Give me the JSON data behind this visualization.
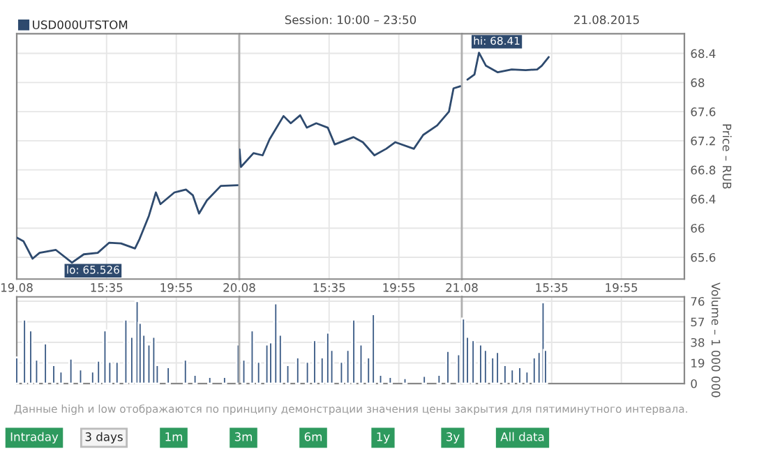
{
  "chart_data": [
    {
      "type": "line",
      "legend": "top left",
      "grid": true,
      "tick_labels": "x",
      "annotations": [
        {
          "text": "lo: 65.526",
          "x": "2015-08-19T13:26",
          "y": 65.526
        }
      ],
      "xlim": [
        "2015-08-19T10:00",
        "2015-08-19T23:50"
      ],
      "xticks": [
        {
          "value": "2015-08-19T10:00",
          "label": "19.08"
        },
        {
          "value": "2015-08-19T15:35",
          "label": "15:35"
        },
        {
          "value": "2015-08-19T19:55",
          "label": "19:55"
        }
      ],
      "ylim": [
        65.3,
        68.67
      ],
      "yticks": [
        65.6,
        66,
        66.4,
        66.8,
        67.2,
        67.6,
        68,
        68.4
      ],
      "series": [
        {
          "name": "USD000UTSTOM",
          "color": "#2e4a6e",
          "x": [
            "2015-08-19T10:00",
            "2015-08-19T10:25",
            "2015-08-19T10:59",
            "2015-08-19T11:25",
            "2015-08-19T12:26",
            "2015-08-19T13:26",
            "2015-08-19T14:10",
            "2015-08-19T15:02",
            "2015-08-19T15:45",
            "2015-08-19T16:29",
            "2015-08-19T17:21",
            "2015-08-19T17:38",
            "2015-08-19T18:13",
            "2015-08-19T18:39",
            "2015-08-19T18:56",
            "2015-08-19T19:48",
            "2015-08-19T20:31",
            "2015-08-19T20:57",
            "2015-08-19T21:20",
            "2015-08-19T21:49",
            "2015-08-19T22:41",
            "2015-08-19T23:46"
          ],
          "values": [
            65.87,
            65.82,
            65.58,
            65.66,
            65.7,
            65.526,
            65.64,
            65.66,
            65.8,
            65.79,
            65.72,
            65.85,
            66.17,
            66.49,
            66.33,
            66.49,
            66.53,
            66.45,
            66.2,
            66.38,
            66.58,
            66.59
          ]
        }
      ]
    },
    {
      "type": "line",
      "grid": true,
      "tick_labels": "x",
      "annotations": [
        "Session: 10:00 – 23:50"
      ],
      "xlim": [
        "2015-08-20T10:00",
        "2015-08-20T23:50"
      ],
      "xticks": [
        {
          "value": "2015-08-20T10:00",
          "label": "20.08"
        },
        {
          "value": "2015-08-20T15:35",
          "label": "15:35"
        },
        {
          "value": "2015-08-20T19:55",
          "label": "19:55"
        }
      ],
      "ylim": [
        65.3,
        68.67
      ],
      "yticks": [
        65.6,
        66,
        66.4,
        66.8,
        67.2,
        67.6,
        68,
        68.4
      ],
      "series": [
        {
          "color": "#2e4a6e",
          "x": [
            "2015-08-20T10:01",
            "2015-08-20T10:06",
            "2015-08-20T10:53",
            "2015-08-20T11:27",
            "2015-08-20T11:53",
            "2015-08-20T12:45",
            "2015-08-20T13:12",
            "2015-08-20T13:47",
            "2015-08-20T14:12",
            "2015-08-20T14:47",
            "2015-08-20T15:30",
            "2015-08-20T15:56",
            "2015-08-20T17:06",
            "2015-08-20T17:41",
            "2015-08-20T18:24",
            "2015-08-20T19:08",
            "2015-08-20T19:42",
            "2015-08-20T20:51",
            "2015-08-20T21:26",
            "2015-08-20T22:18",
            "2015-08-20T23:02",
            "2015-08-20T23:19",
            "2015-08-20T23:45"
          ],
          "values": [
            67.08,
            66.84,
            67.03,
            67.0,
            67.22,
            67.54,
            67.44,
            67.55,
            67.38,
            67.44,
            67.38,
            67.15,
            67.25,
            67.18,
            67.0,
            67.09,
            67.18,
            67.09,
            67.28,
            67.41,
            67.6,
            67.92,
            67.95
          ]
        }
      ]
    },
    {
      "type": "line",
      "grid": true,
      "ylabel": "Price – RUB",
      "annotations": [
        "21.08.2015",
        {
          "text": "hi: 68.41",
          "x": "2015-08-21T11:04",
          "y": 68.41
        }
      ],
      "xlim": [
        "2015-08-21T10:00",
        "2015-08-21T23:50"
      ],
      "xticks": [
        {
          "value": "2015-08-21T10:00",
          "label": "21.08"
        },
        {
          "value": "2015-08-21T15:35",
          "label": "15:35"
        },
        {
          "value": "2015-08-21T19:55",
          "label": "19:55"
        }
      ],
      "ylim": [
        65.3,
        68.67
      ],
      "yticks": [
        65.6,
        66,
        66.4,
        66.8,
        67.2,
        67.6,
        68,
        68.4
      ],
      "series": [
        {
          "color": "#2e4a6e",
          "x": [
            "2015-08-21T10:21",
            "2015-08-21T10:47",
            "2015-08-21T11:04",
            "2015-08-21T11:30",
            "2015-08-21T12:14",
            "2015-08-21T13:06",
            "2015-08-21T13:58",
            "2015-08-21T14:41",
            "2015-08-21T14:58",
            "2015-08-21T15:24"
          ],
          "values": [
            68.04,
            68.11,
            68.41,
            68.23,
            68.14,
            68.18,
            68.17,
            68.18,
            68.23,
            68.35
          ]
        }
      ]
    },
    {
      "type": "bar",
      "grid": true,
      "tick_labels": false,
      "annotations": [
        "Данные high и low отображаются по принципу демонстрации значения цены закрытия для пятиминутного интервала.",
        "Intraday",
        "3 days",
        "1m",
        "3m",
        "6m",
        "1y",
        "3y",
        "All data"
      ],
      "xlim": [
        "2015-08-19T10:00",
        "2015-08-19T23:50"
      ],
      "xticks": [
        {
          "value": "2015-08-19T10:00",
          "label": null
        },
        {
          "value": "2015-08-19T15:35",
          "label": null
        },
        {
          "value": "2015-08-19T19:55",
          "label": null
        }
      ],
      "ylim": [
        0,
        80
      ],
      "yticks": [
        0,
        19,
        38,
        57,
        76
      ],
      "series": [
        {
          "color": "#3a5a85",
          "x": [
            "2015-08-19T10:00",
            "2015-08-19T10:29",
            "2015-08-19T10:52",
            "2015-08-19T11:14",
            "2015-08-19T11:47",
            "2015-08-19T12:18",
            "2015-08-19T12:45",
            "2015-08-19T13:22",
            "2015-08-19T13:58",
            "2015-08-19T14:43",
            "2015-08-19T15:05",
            "2015-08-19T15:29",
            "2015-08-19T15:47",
            "2015-08-19T16:14",
            "2015-08-19T16:47",
            "2015-08-19T17:09",
            "2015-08-19T17:29",
            "2015-08-19T17:40",
            "2015-08-19T17:54",
            "2015-08-19T18:13",
            "2015-08-19T18:31",
            "2015-08-19T18:44",
            "2015-08-19T19:25",
            "2015-08-19T20:29",
            "2015-08-19T21:05",
            "2015-08-19T22:00",
            "2015-08-19T22:55",
            "2015-08-19T23:46"
          ],
          "values": [
            24,
            59,
            49,
            22,
            37,
            17,
            11,
            23,
            13,
            11,
            21,
            49,
            20,
            20,
            59,
            43,
            76,
            56,
            45,
            36,
            43,
            17,
            15,
            22,
            8,
            6,
            6,
            36
          ]
        }
      ]
    },
    {
      "type": "bar",
      "grid": true,
      "tick_labels": false,
      "xlim": [
        "2015-08-20T10:00",
        "2015-08-20T23:50"
      ],
      "xticks": [
        {
          "value": "2015-08-20T10:00",
          "label": null
        },
        {
          "value": "2015-08-20T15:35",
          "label": null
        },
        {
          "value": "2015-08-20T19:55",
          "label": null
        }
      ],
      "ylim": [
        0,
        80
      ],
      "yticks": [
        0,
        19,
        38,
        57,
        76
      ],
      "series": [
        {
          "color": "#3a5a85",
          "x": [
            "2015-08-20T10:17",
            "2015-08-20T10:48",
            "2015-08-20T11:12",
            "2015-08-20T11:43",
            "2015-08-20T11:57",
            "2015-08-20T12:16",
            "2015-08-20T12:33",
            "2015-08-20T13:01",
            "2015-08-20T13:38",
            "2015-08-20T14:14",
            "2015-08-20T14:41",
            "2015-08-20T15:09",
            "2015-08-20T15:30",
            "2015-08-20T15:45",
            "2015-08-20T16:21",
            "2015-08-20T16:45",
            "2015-08-20T17:07",
            "2015-08-20T17:34",
            "2015-08-20T18:02",
            "2015-08-20T18:20",
            "2015-08-20T18:47",
            "2015-08-20T19:23",
            "2015-08-20T20:18",
            "2015-08-20T21:30",
            "2015-08-20T22:25",
            "2015-08-20T22:58",
            "2015-08-20T23:38"
          ],
          "values": [
            22,
            49,
            20,
            36,
            38,
            74,
            45,
            17,
            24,
            20,
            40,
            24,
            47,
            31,
            20,
            31,
            59,
            36,
            24,
            64,
            8,
            6,
            5,
            7,
            8,
            30,
            27
          ]
        }
      ]
    },
    {
      "type": "bar",
      "grid": true,
      "tick_labels": "y",
      "ylabel": "Volume – 1 000 000",
      "xlim": [
        "2015-08-21T10:00",
        "2015-08-21T23:50"
      ],
      "xticks": [
        {
          "value": "2015-08-21T10:00",
          "label": null
        },
        {
          "value": "2015-08-21T15:35",
          "label": null
        },
        {
          "value": "2015-08-21T19:55",
          "label": null
        }
      ],
      "ylim": [
        0,
        80
      ],
      "yticks": [
        0,
        19,
        38,
        57,
        76
      ],
      "series": [
        {
          "color": "#3a5a85",
          "x": [
            "2015-08-21T10:06",
            "2015-08-21T10:21",
            "2015-08-21T10:42",
            "2015-08-21T11:10",
            "2015-08-21T11:28",
            "2015-08-21T11:55",
            "2015-08-21T12:13",
            "2015-08-21T12:41",
            "2015-08-21T13:08",
            "2015-08-21T13:36",
            "2015-08-21T14:03",
            "2015-08-21T14:30",
            "2015-08-21T14:48",
            "2015-08-21T15:03",
            "2015-08-21T15:12"
          ],
          "values": [
            60,
            43,
            40,
            36,
            31,
            24,
            29,
            17,
            13,
            15,
            11,
            24,
            29,
            75,
            31
          ]
        }
      ]
    }
  ]
}
